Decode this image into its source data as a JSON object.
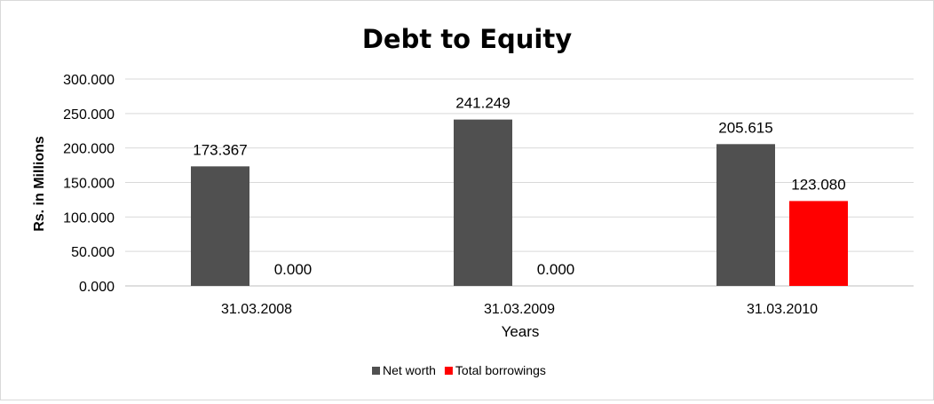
{
  "chart_data": {
    "type": "bar",
    "title": "Debt to Equity",
    "xlabel": "Years",
    "ylabel": "Rs. in Millions",
    "categories": [
      "31.03.2008",
      "31.03.2009",
      "31.03.2010"
    ],
    "series": [
      {
        "name": "Net worth",
        "color": "#505050",
        "values": [
          173.367,
          241.249,
          205.615
        ],
        "labels": [
          "173.367",
          "241.249",
          "205.615"
        ]
      },
      {
        "name": "Total borrowings",
        "color": "#ff0000",
        "values": [
          0.0,
          0.0,
          123.08
        ],
        "labels": [
          "0.000",
          "0.000",
          "123.080"
        ]
      }
    ],
    "ylim": [
      0,
      300
    ],
    "yticks": [
      "0.000",
      "50.000",
      "100.000",
      "150.000",
      "200.000",
      "250.000",
      "300.000"
    ],
    "grid": true,
    "legend": "bottom"
  }
}
